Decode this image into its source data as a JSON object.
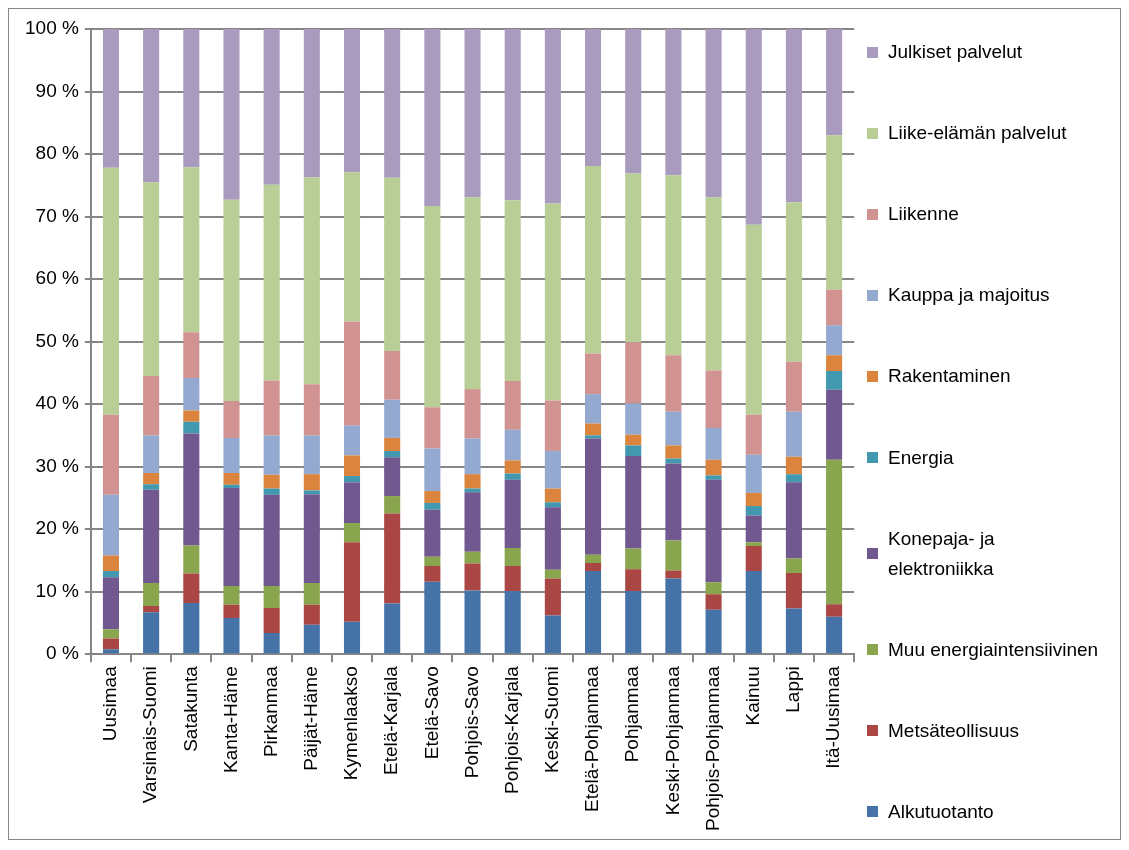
{
  "chart_data": {
    "type": "bar",
    "stacked": true,
    "categories": [
      "Uusimaa",
      "Varsinais-Suomi",
      "Satakunta",
      "Kanta-Häme",
      "Pirkanmaa",
      "Päijät-Häme",
      "Kymenlaakso",
      "Etelä-Karjala",
      "Etelä-Savo",
      "Pohjois-Savo",
      "Pohjois-Karjala",
      "Keski-Suomi",
      "Etelä-Pohjanmaa",
      "Pohjanmaa",
      "Keski-Pohjanmaa",
      "Pohjois-Pohjanmaa",
      "Kainuu",
      "Lappi",
      "Itä-Uusimaa"
    ],
    "ylim": [
      0,
      100
    ],
    "yticks": [
      {
        "value": 0,
        "label": "0 %"
      },
      {
        "value": 10,
        "label": "10 %"
      },
      {
        "value": 20,
        "label": "20 %"
      },
      {
        "value": 30,
        "label": "30 %"
      },
      {
        "value": 40,
        "label": "40 %"
      },
      {
        "value": 50,
        "label": "50 %"
      },
      {
        "value": 60,
        "label": "60 %"
      },
      {
        "value": 70,
        "label": "70 %"
      },
      {
        "value": 80,
        "label": "80 %"
      },
      {
        "value": 90,
        "label": "90 %"
      },
      {
        "value": 100,
        "label": "100 %"
      }
    ],
    "grid": "y",
    "legend": "right",
    "series": [
      {
        "name": "Alkutuotanto",
        "color": "#4572a7",
        "values": [
          0.8,
          6.7,
          8.2,
          5.8,
          3.4,
          4.7,
          5.2,
          8.1,
          11.6,
          10.2,
          10.1,
          6.2,
          13.3,
          10.1,
          12.1,
          7.1,
          13.3,
          7.3,
          6.0
        ]
      },
      {
        "name": "Metsäteollisuus",
        "color": "#aa4643",
        "values": [
          1.7,
          1.0,
          4.7,
          2.1,
          4.0,
          3.2,
          12.7,
          14.4,
          2.5,
          4.3,
          4.0,
          5.9,
          1.3,
          3.5,
          1.3,
          2.5,
          4.0,
          5.7,
          2.0
        ]
      },
      {
        "name": "Muu energiaintensiivinen",
        "color": "#89a54e",
        "values": [
          1.5,
          3.7,
          4.5,
          3.0,
          3.5,
          3.5,
          3.1,
          2.8,
          1.5,
          1.9,
          2.9,
          1.4,
          1.3,
          3.3,
          4.8,
          1.9,
          0.6,
          2.3,
          23.1
        ]
      },
      {
        "name": "Konepaja- ja elektroniikka",
        "color": "#71588f",
        "values": [
          8.3,
          14.9,
          17.9,
          15.7,
          14.6,
          14.2,
          6.5,
          6.2,
          7.5,
          9.5,
          10.9,
          10.0,
          18.6,
          14.8,
          12.3,
          16.4,
          4.3,
          12.2,
          11.2
        ]
      },
      {
        "name": "Energia",
        "color": "#4198af",
        "values": [
          1.0,
          0.9,
          1.9,
          0.5,
          1.0,
          0.6,
          1.0,
          1.0,
          1.1,
          0.6,
          1.0,
          0.8,
          0.5,
          1.7,
          0.8,
          0.7,
          1.5,
          1.3,
          3.0
        ]
      },
      {
        "name": "Rakentaminen",
        "color": "#db843d",
        "values": [
          2.5,
          1.8,
          1.8,
          1.9,
          2.2,
          2.6,
          3.3,
          2.1,
          1.9,
          2.3,
          2.1,
          2.2,
          1.9,
          1.7,
          2.1,
          2.5,
          2.1,
          2.8,
          2.5
        ]
      },
      {
        "name": "Kauppa ja majoitus",
        "color": "#93a9cf",
        "values": [
          9.7,
          6.0,
          5.2,
          5.6,
          6.3,
          6.2,
          4.8,
          6.1,
          6.8,
          5.7,
          4.9,
          6.0,
          4.7,
          5.0,
          5.4,
          5.1,
          6.1,
          7.2,
          4.8
        ]
      },
      {
        "name": "Liikenne",
        "color": "#d19392",
        "values": [
          12.8,
          9.5,
          7.3,
          5.9,
          8.8,
          8.2,
          16.6,
          7.8,
          6.6,
          7.9,
          7.8,
          8.1,
          6.5,
          9.8,
          9.0,
          9.2,
          6.4,
          8.0,
          5.7
        ]
      },
      {
        "name": "Liike-elämän palvelut",
        "color": "#b9cd96",
        "values": [
          39.5,
          31.0,
          26.4,
          32.2,
          31.3,
          33.1,
          23.9,
          27.7,
          32.2,
          30.7,
          28.9,
          31.5,
          30.0,
          27.0,
          28.8,
          27.7,
          30.4,
          25.5,
          24.7
        ]
      },
      {
        "name": "Julkiset palvelut",
        "color": "#a99bbd",
        "values": [
          22.2,
          24.5,
          22.1,
          27.3,
          24.9,
          23.7,
          22.9,
          23.8,
          28.3,
          26.9,
          27.4,
          27.9,
          21.9,
          23.1,
          23.4,
          26.9,
          31.3,
          27.7,
          17.0
        ]
      }
    ]
  }
}
